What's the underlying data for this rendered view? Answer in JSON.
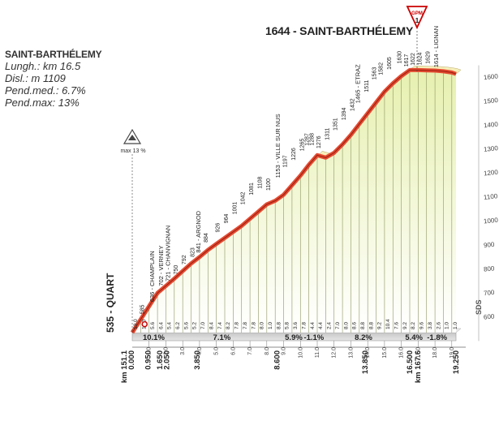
{
  "info": {
    "title": "SAINT-BARTHÉLEMY",
    "length": "Lungh.: km 16.5",
    "elevation_gain": "Disl.: m 1109",
    "avg_gradient": "Pend.med.: 6.7%",
    "max_gradient": "Pend.max: 13%"
  },
  "summit_title": "1644 - SAINT-BARTHÉLEMY",
  "gpm": {
    "label": "GPM",
    "category": "1"
  },
  "max_badge": "max 13 %",
  "sds": "SDS",
  "chart_data": {
    "type": "area",
    "title": "",
    "xlabel": "",
    "ylabel": "",
    "ylim": [
      500,
      1700
    ],
    "xlim": [
      0,
      19.25
    ],
    "profile": {
      "x": [
        0,
        0.5,
        1,
        1.5,
        2,
        2.5,
        3,
        3.5,
        4,
        4.5,
        5,
        5.5,
        6,
        6.5,
        7,
        7.5,
        8,
        8.5,
        9,
        9.5,
        10,
        10.5,
        11,
        11.5,
        12,
        12.5,
        13,
        13.5,
        14,
        14.5,
        15,
        15.5,
        16,
        16.5,
        17,
        17.5,
        18,
        18.5,
        19,
        19.25
      ],
      "y": [
        535,
        590,
        645,
        700,
        730,
        760,
        792,
        823,
        850,
        880,
        905,
        930,
        955,
        980,
        1010,
        1040,
        1070,
        1085,
        1110,
        1150,
        1190,
        1235,
        1275,
        1265,
        1285,
        1320,
        1360,
        1405,
        1450,
        1495,
        1540,
        1575,
        1605,
        1630,
        1630,
        1629,
        1628,
        1625,
        1620,
        1614
      ]
    },
    "y_ticks": [
      600,
      700,
      800,
      900,
      1000,
      1100,
      1200,
      1300,
      1400,
      1500,
      1600
    ],
    "point_labels": [
      {
        "name": "535 - QUART",
        "km": 0,
        "alt": 535
      },
      {
        "name": "585",
        "km": 0.5,
        "alt": 585
      },
      {
        "name": "636 - CHAMPLAIN",
        "km": 1.1,
        "alt": 636
      },
      {
        "name": "702 - VERNEY",
        "km": 1.65,
        "alt": 702
      },
      {
        "name": "721 - CHANVIGNAN",
        "km": 2.05,
        "alt": 721
      },
      {
        "name": "750",
        "km": 2.5,
        "alt": 750
      },
      {
        "name": "792",
        "km": 3.0,
        "alt": 792
      },
      {
        "name": "823",
        "km": 3.5,
        "alt": 823
      },
      {
        "name": "841 - ARGNOD",
        "km": 3.85,
        "alt": 841
      },
      {
        "name": "884",
        "km": 4.3,
        "alt": 884
      },
      {
        "name": "926",
        "km": 5.0,
        "alt": 926
      },
      {
        "name": "964",
        "km": 5.5,
        "alt": 964
      },
      {
        "name": "1001",
        "km": 6.0,
        "alt": 1001
      },
      {
        "name": "1042",
        "km": 6.5,
        "alt": 1042
      },
      {
        "name": "1081",
        "km": 7.0,
        "alt": 1081
      },
      {
        "name": "1108",
        "km": 7.5,
        "alt": 1108
      },
      {
        "name": "1100",
        "km": 8.0,
        "alt": 1100
      },
      {
        "name": "1153 - VILLE SUR NUS",
        "km": 8.6,
        "alt": 1153
      },
      {
        "name": "1197",
        "km": 9.0,
        "alt": 1197
      },
      {
        "name": "1226",
        "km": 9.5,
        "alt": 1226
      },
      {
        "name": "1265",
        "km": 10.0,
        "alt": 1265
      },
      {
        "name": "1287",
        "km": 10.3,
        "alt": 1287
      },
      {
        "name": "1288",
        "km": 10.6,
        "alt": 1288
      },
      {
        "name": "1276",
        "km": 11.0,
        "alt": 1276
      },
      {
        "name": "1311",
        "km": 11.5,
        "alt": 1311
      },
      {
        "name": "1351",
        "km": 12.0,
        "alt": 1351
      },
      {
        "name": "1394",
        "km": 12.5,
        "alt": 1394
      },
      {
        "name": "1432",
        "km": 13.0,
        "alt": 1432
      },
      {
        "name": "1465 - ETRAZ",
        "km": 13.35,
        "alt": 1465
      },
      {
        "name": "1511",
        "km": 13.85,
        "alt": 1511
      },
      {
        "name": "1563",
        "km": 14.3,
        "alt": 1563
      },
      {
        "name": "1582",
        "km": 14.7,
        "alt": 1582
      },
      {
        "name": "1605",
        "km": 15.2,
        "alt": 1605
      },
      {
        "name": "1630",
        "km": 15.8,
        "alt": 1630
      },
      {
        "name": "1617",
        "km": 16.2,
        "alt": 1617
      },
      {
        "name": "1622",
        "km": 16.6,
        "alt": 1622
      },
      {
        "name": "1624",
        "km": 17.0,
        "alt": 1624
      },
      {
        "name": "1629",
        "km": 17.5,
        "alt": 1629
      },
      {
        "name": "1614 - LIGNAN",
        "km": 18.0,
        "alt": 1614
      }
    ],
    "gradient_labels": [
      "10.0",
      "11.0",
      "5.6",
      "6.4",
      "5.4",
      "6.2",
      "5.6",
      "5.2",
      "7.0",
      "8.4",
      "7.4",
      "8.2",
      "7.8",
      "7.8",
      "7.8",
      "8.0",
      "1.0",
      "8.8",
      "5.8",
      "3.6",
      "7.8",
      "4.4",
      "4.4",
      "2.4",
      "7.0",
      "8.0",
      "8.6",
      "8.8",
      "8.8",
      "9.2",
      "10.4",
      "7.6",
      "9.2",
      "8.2",
      "9.6",
      "3.8",
      "2.6",
      "1.0",
      "1.0"
    ],
    "km_labels": [
      "0.000",
      "km 151.1",
      "0.950",
      "1.650",
      "2.050",
      "3.850",
      "8.600",
      "13.850",
      "16.500",
      "km 167.6",
      "19.250"
    ],
    "km_ticks": [
      "1.0",
      "2.0",
      "3.0",
      "4.0",
      "5.0",
      "6.0",
      "7.0",
      "8.0",
      "9.0",
      "10.0",
      "11.0",
      "12.0",
      "13.0",
      "14.0",
      "15.0",
      "16.0",
      "17.0",
      "18.0",
      "19.0"
    ],
    "segment_gradients": [
      {
        "label": "10.1%",
        "from": 0.5,
        "to": 2.05
      },
      {
        "label": "7.1%",
        "from": 2.05,
        "to": 8.6
      },
      {
        "label": "5.9%",
        "from": 8.6,
        "to": 10.6
      },
      {
        "label": "-1.1%",
        "from": 10.6,
        "to": 11.0
      },
      {
        "label": "8.2%",
        "from": 11.0,
        "to": 16.5
      },
      {
        "label": "5.4%",
        "from": 16.5,
        "to": 17.0
      },
      {
        "label": "-1.8%",
        "from": 17.0,
        "to": 19.25
      }
    ]
  }
}
